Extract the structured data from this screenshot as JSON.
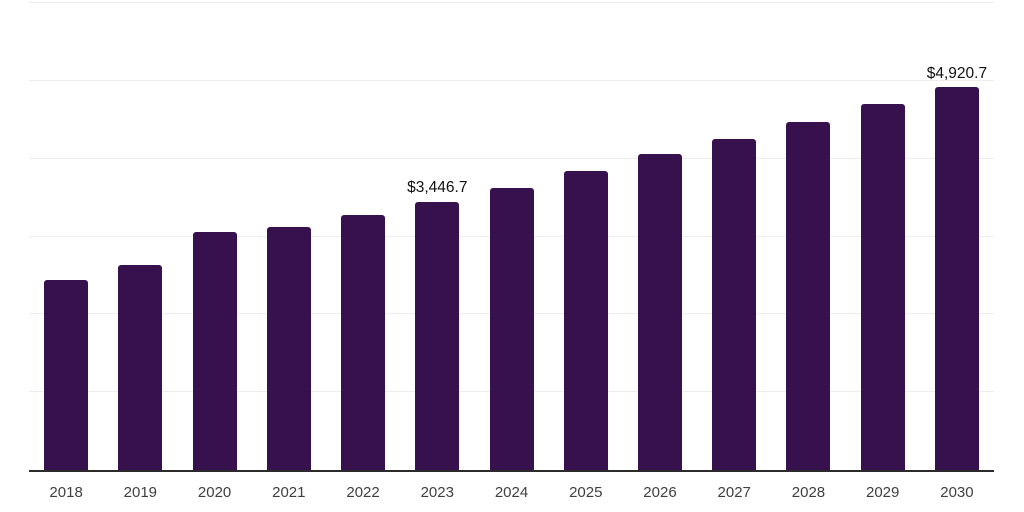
{
  "chart_data": {
    "type": "bar",
    "title": "",
    "xlabel": "",
    "ylabel": "",
    "categories": [
      "2018",
      "2019",
      "2020",
      "2021",
      "2022",
      "2023",
      "2024",
      "2025",
      "2026",
      "2027",
      "2028",
      "2029",
      "2030"
    ],
    "values": [
      2447,
      2637,
      3054,
      3118,
      3277,
      3446.7,
      3626,
      3843,
      4057,
      4257,
      4470,
      4697,
      4920.7
    ],
    "value_labels": {
      "2023": "$3,446.7",
      "2030": "$4,920.7"
    },
    "ylim": [
      0,
      6000
    ],
    "gridline_interval": 1000,
    "grid": "on",
    "legend": "none",
    "y_tick_labels_visible": false,
    "colors": {
      "bar": "#36114e",
      "gridline": "#ededed",
      "axis_line": "#2b2b2b",
      "tick_label": "#3f3f3f",
      "value_label": "#111111",
      "background": "#ffffff"
    }
  }
}
